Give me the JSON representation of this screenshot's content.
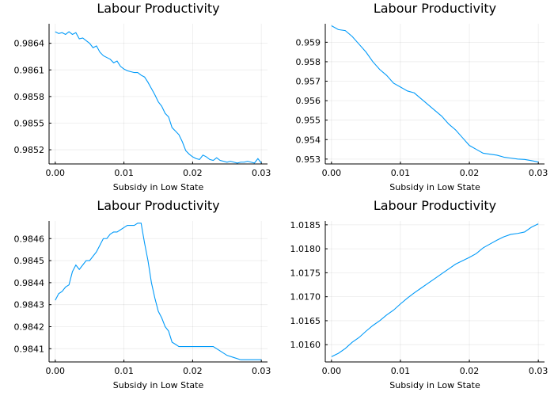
{
  "figure": {
    "line_color": "#009af9"
  },
  "chart_data": [
    {
      "type": "line",
      "title": "Labour Productivity",
      "xlabel": "Subsidy in Low State",
      "ylabel": "",
      "xlim": [
        -0.0009,
        0.0309
      ],
      "ylim": [
        0.98504,
        0.98662
      ],
      "xticks": [
        0.0,
        0.01,
        0.02,
        0.03
      ],
      "xtick_labels": [
        "0.00",
        "0.01",
        "0.02",
        "0.03"
      ],
      "yticks": [
        0.9852,
        0.9855,
        0.9858,
        0.9861,
        0.9864
      ],
      "ytick_labels": [
        "0.9852",
        "0.9855",
        "0.9858",
        "0.9861",
        "0.9864"
      ],
      "grid": true,
      "legend": "none",
      "series": [
        {
          "x": [
            0.0,
            0.0005,
            0.001,
            0.0015,
            0.002,
            0.0025,
            0.003,
            0.0035,
            0.004,
            0.0045,
            0.005,
            0.0055,
            0.006,
            0.0065,
            0.007,
            0.0075,
            0.008,
            0.0085,
            0.009,
            0.0095,
            0.01,
            0.0105,
            0.011,
            0.0115,
            0.012,
            0.0125,
            0.013,
            0.0135,
            0.014,
            0.0145,
            0.015,
            0.0155,
            0.016,
            0.0165,
            0.017,
            0.0175,
            0.018,
            0.0185,
            0.019,
            0.0195,
            0.02,
            0.0205,
            0.021,
            0.0215,
            0.022,
            0.0225,
            0.023,
            0.0235,
            0.024,
            0.0245,
            0.025,
            0.0255,
            0.026,
            0.0265,
            0.027,
            0.0275,
            0.028,
            0.0285,
            0.029,
            0.0295,
            0.03
          ],
          "y": [
            0.98653,
            0.98651,
            0.98652,
            0.9865,
            0.98653,
            0.9865,
            0.98652,
            0.98645,
            0.98646,
            0.98643,
            0.9864,
            0.98635,
            0.98637,
            0.9863,
            0.98626,
            0.98624,
            0.98622,
            0.98618,
            0.9862,
            0.98614,
            0.98611,
            0.98609,
            0.98608,
            0.98607,
            0.98607,
            0.98604,
            0.98602,
            0.98596,
            0.98589,
            0.98582,
            0.98574,
            0.98569,
            0.98561,
            0.98557,
            0.98545,
            0.98541,
            0.98537,
            0.98529,
            0.98519,
            0.98515,
            0.98512,
            0.9851,
            0.98509,
            0.98514,
            0.98512,
            0.98509,
            0.98508,
            0.98511,
            0.98508,
            0.98507,
            0.98506,
            0.98507,
            0.98506,
            0.98505,
            0.98506,
            0.98506,
            0.98507,
            0.98506,
            0.98505,
            0.9851,
            0.98505
          ]
        }
      ]
    },
    {
      "type": "line",
      "title": "Labour Productivity",
      "xlabel": "Subsidy in Low State",
      "ylabel": "",
      "xlim": [
        -0.0009,
        0.0309
      ],
      "ylim": [
        0.95275,
        0.95995
      ],
      "xticks": [
        0.0,
        0.01,
        0.02,
        0.03
      ],
      "xtick_labels": [
        "0.00",
        "0.01",
        "0.02",
        "0.03"
      ],
      "yticks": [
        0.953,
        0.954,
        0.955,
        0.956,
        0.957,
        0.958,
        0.959
      ],
      "ytick_labels": [
        "0.953",
        "0.954",
        "0.955",
        "0.956",
        "0.957",
        "0.958",
        "0.959"
      ],
      "grid": true,
      "legend": "none",
      "series": [
        {
          "x": [
            0.0,
            0.001,
            0.002,
            0.003,
            0.004,
            0.005,
            0.006,
            0.007,
            0.008,
            0.009,
            0.01,
            0.011,
            0.012,
            0.013,
            0.014,
            0.015,
            0.016,
            0.017,
            0.018,
            0.019,
            0.02,
            0.021,
            0.022,
            0.023,
            0.024,
            0.025,
            0.026,
            0.027,
            0.028,
            0.029,
            0.03
          ],
          "y": [
            0.95985,
            0.95965,
            0.9596,
            0.9593,
            0.9589,
            0.9585,
            0.958,
            0.9576,
            0.9573,
            0.9569,
            0.9567,
            0.9565,
            0.9564,
            0.9561,
            0.9558,
            0.9555,
            0.9552,
            0.9548,
            0.9545,
            0.9541,
            0.9537,
            0.9535,
            0.9533,
            0.95325,
            0.9532,
            0.9531,
            0.95305,
            0.953,
            0.95298,
            0.95292,
            0.95285
          ]
        }
      ]
    },
    {
      "type": "line",
      "title": "Labour Productivity",
      "xlabel": "Subsidy in Low State",
      "ylabel": "",
      "xlim": [
        -0.0009,
        0.0309
      ],
      "ylim": [
        0.98404,
        0.98468
      ],
      "xticks": [
        0.0,
        0.01,
        0.02,
        0.03
      ],
      "xtick_labels": [
        "0.00",
        "0.01",
        "0.02",
        "0.03"
      ],
      "yticks": [
        0.9841,
        0.9842,
        0.9843,
        0.9844,
        0.9845,
        0.9846
      ],
      "ytick_labels": [
        "0.9841",
        "0.9842",
        "0.9843",
        "0.9844",
        "0.9845",
        "0.9846"
      ],
      "grid": true,
      "legend": "none",
      "series": [
        {
          "x": [
            0.0,
            0.0005,
            0.001,
            0.0015,
            0.002,
            0.0025,
            0.003,
            0.0035,
            0.004,
            0.0045,
            0.005,
            0.0055,
            0.006,
            0.0065,
            0.007,
            0.0075,
            0.008,
            0.0085,
            0.009,
            0.0095,
            0.01,
            0.0105,
            0.011,
            0.0115,
            0.012,
            0.0125,
            0.013,
            0.0135,
            0.014,
            0.0145,
            0.015,
            0.0155,
            0.016,
            0.0165,
            0.017,
            0.0175,
            0.018,
            0.0185,
            0.019,
            0.0195,
            0.02,
            0.021,
            0.022,
            0.023,
            0.024,
            0.025,
            0.026,
            0.027,
            0.028,
            0.029,
            0.03
          ],
          "y": [
            0.98432,
            0.98435,
            0.98436,
            0.98438,
            0.98439,
            0.98445,
            0.98448,
            0.98446,
            0.98448,
            0.9845,
            0.9845,
            0.98452,
            0.98454,
            0.98457,
            0.9846,
            0.9846,
            0.98462,
            0.98463,
            0.98463,
            0.98464,
            0.98465,
            0.98466,
            0.98466,
            0.98466,
            0.98467,
            0.98467,
            0.98458,
            0.9845,
            0.9844,
            0.98433,
            0.98427,
            0.98424,
            0.9842,
            0.98418,
            0.98413,
            0.98412,
            0.98411,
            0.98411,
            0.98411,
            0.98411,
            0.98411,
            0.98411,
            0.98411,
            0.98411,
            0.98409,
            0.98407,
            0.98406,
            0.98405,
            0.98405,
            0.98405,
            0.98405
          ]
        }
      ]
    },
    {
      "type": "line",
      "title": "Labour Productivity",
      "xlabel": "Subsidy in Low State",
      "ylabel": "",
      "xlim": [
        -0.0009,
        0.0309
      ],
      "ylim": [
        1.01564,
        1.01858
      ],
      "xticks": [
        0.0,
        0.01,
        0.02,
        0.03
      ],
      "xtick_labels": [
        "0.00",
        "0.01",
        "0.02",
        "0.03"
      ],
      "yticks": [
        1.016,
        1.0165,
        1.017,
        1.0175,
        1.018,
        1.0185
      ],
      "ytick_labels": [
        "1.0160",
        "1.0165",
        "1.0170",
        "1.0175",
        "1.0180",
        "1.0185"
      ],
      "grid": true,
      "legend": "none",
      "series": [
        {
          "x": [
            0.0,
            0.001,
            0.002,
            0.003,
            0.004,
            0.005,
            0.006,
            0.007,
            0.008,
            0.009,
            0.01,
            0.011,
            0.012,
            0.013,
            0.014,
            0.015,
            0.016,
            0.017,
            0.018,
            0.019,
            0.02,
            0.021,
            0.022,
            0.023,
            0.024,
            0.025,
            0.026,
            0.027,
            0.028,
            0.029,
            0.03
          ],
          "y": [
            1.01575,
            1.01582,
            1.01592,
            1.01605,
            1.01615,
            1.01628,
            1.0164,
            1.0165,
            1.01662,
            1.01672,
            1.01685,
            1.01697,
            1.01708,
            1.01718,
            1.01728,
            1.01738,
            1.01748,
            1.01758,
            1.01768,
            1.01775,
            1.01782,
            1.0179,
            1.01802,
            1.0181,
            1.01818,
            1.01825,
            1.0183,
            1.01832,
            1.01835,
            1.01845,
            1.01852
          ]
        }
      ]
    }
  ]
}
